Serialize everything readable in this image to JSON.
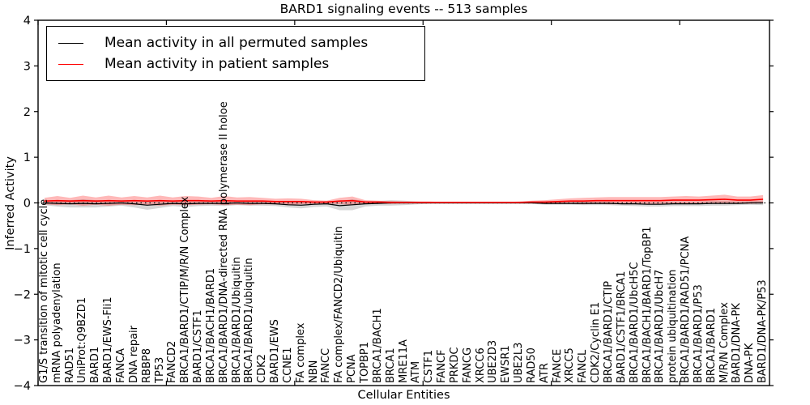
{
  "title": "BARD1 signaling events -- 513 samples",
  "axes": {
    "xlabel": "Cellular Entities",
    "ylabel": "Inferred Activity"
  },
  "legend": {
    "items": [
      {
        "label": "Mean activity in all permuted samples",
        "color": "#000000"
      },
      {
        "label": "Mean activity in patient samples",
        "color": "#ff0000"
      }
    ]
  },
  "colors": {
    "patient_line": "#ff0000",
    "patient_band": "rgba(255,0,0,0.28)",
    "permuted_line": "#000000",
    "permuted_band": "rgba(0,0,0,0.16)",
    "frame": "#000000",
    "zero_line": "#000000"
  },
  "chart_data": {
    "type": "line",
    "title": "BARD1 signaling events -- 513 samples",
    "xlabel": "Cellular Entities",
    "ylabel": "Inferred Activity",
    "ylim": [
      -4,
      4
    ],
    "yticks": [
      4,
      3,
      2,
      1,
      0,
      -1,
      -2,
      -3,
      -4
    ],
    "ytick_labels": [
      "4",
      "3",
      "2",
      "1",
      "0",
      "−1",
      "−2",
      "−3",
      "−4"
    ],
    "grid": false,
    "zero_reference_line": true,
    "legend_position": "upper left",
    "top_tick_step": 10,
    "categories": [
      "G1/S transition of mitotic cell cycle",
      "mRNA polyadenylation",
      "RAD51",
      "UniProt:Q9BZD1",
      "BARD1",
      "BARD1/EWS-Fli1",
      "FANCA",
      "DNA repair",
      "RBBP8",
      "TP53",
      "FANCD2",
      "BRCA1/BARD1/CTIP/M/R/N Complex",
      "BARD1/CSTF1",
      "BRCA1/BACH1/BARD1",
      "BRCA1/BARD1/DNA-directed RNA polymerase II holoe",
      "BRCA1/BARD1/Ubiquitin",
      "BRCA1/BARD1/ubiquitin",
      "CDK2",
      "BARD1/EWS",
      "CCNE1",
      "FA complex",
      "NBN",
      "FANCC",
      "FA complex/FANCD2/Ubiquitin",
      "PCNA",
      "TOPBP1",
      "BRCA1/BACH1",
      "BRCA1",
      "MRE11A",
      "ATM",
      "CSTF1",
      "FANCF",
      "PRKDC",
      "FANCG",
      "XRCC6",
      "UBE2D3",
      "EWSR1",
      "UBE2L3",
      "RAD50",
      "ATR",
      "FANCE",
      "XRCC5",
      "FANCL",
      "CDK2/Cyclin E1",
      "BRCA1/BARD1/CTIP",
      "BARD1/CSTF1/BRCA1",
      "BRCA1/BARD1/UbcH5C",
      "BRCA1/BACH1/BARD1/TopBP1",
      "BRCA1/BARD1/UbcH7",
      "protein ubiquitination",
      "BRCA1/BARD1/RAD51/PCNA",
      "BRCA1/BARD1/P53",
      "BRCA1/BARD1",
      "M/R/N Complex",
      "BARD1/DNA-PK",
      "DNA-PK",
      "BARD1/DNA-PK/P53"
    ],
    "series": [
      {
        "name": "Mean activity in all permuted samples",
        "color": "#000000",
        "band_color": "rgba(0,0,0,0.16)",
        "values": [
          0.0,
          -0.01,
          -0.02,
          -0.01,
          -0.02,
          -0.01,
          0.0,
          -0.02,
          -0.05,
          -0.03,
          -0.01,
          -0.02,
          -0.01,
          -0.01,
          -0.01,
          0.0,
          -0.01,
          -0.01,
          -0.02,
          -0.04,
          -0.05,
          -0.03,
          -0.02,
          -0.06,
          -0.04,
          -0.02,
          -0.01,
          0.0,
          0.0,
          0.0,
          0.0,
          0.0,
          0.0,
          0.0,
          0.0,
          0.0,
          0.0,
          0.0,
          0.0,
          -0.01,
          -0.01,
          -0.01,
          -0.01,
          -0.01,
          -0.01,
          -0.02,
          -0.02,
          -0.03,
          -0.03,
          -0.02,
          -0.02,
          -0.02,
          -0.01,
          -0.01,
          -0.01,
          0.0,
          0.0
        ],
        "std": [
          0.05,
          0.07,
          0.08,
          0.09,
          0.08,
          0.07,
          0.06,
          0.08,
          0.1,
          0.08,
          0.06,
          0.07,
          0.06,
          0.05,
          0.06,
          0.05,
          0.05,
          0.05,
          0.05,
          0.06,
          0.07,
          0.06,
          0.06,
          0.1,
          0.12,
          0.06,
          0.05,
          0.06,
          0.05,
          0.03,
          0.02,
          0.02,
          0.02,
          0.02,
          0.02,
          0.02,
          0.02,
          0.02,
          0.02,
          0.03,
          0.03,
          0.03,
          0.04,
          0.04,
          0.04,
          0.04,
          0.05,
          0.05,
          0.05,
          0.05,
          0.05,
          0.05,
          0.05,
          0.05,
          0.04,
          0.04,
          0.05
        ]
      },
      {
        "name": "Mean activity in patient samples",
        "color": "#ff0000",
        "band_color": "rgba(255,0,0,0.28)",
        "values": [
          0.04,
          0.05,
          0.04,
          0.05,
          0.04,
          0.05,
          0.04,
          0.05,
          0.04,
          0.05,
          0.04,
          0.05,
          0.05,
          0.04,
          0.05,
          0.04,
          0.04,
          0.04,
          0.03,
          0.03,
          0.03,
          0.02,
          0.02,
          0.04,
          0.05,
          0.02,
          0.02,
          0.01,
          0.01,
          0.01,
          0.01,
          0.01,
          0.01,
          0.01,
          0.01,
          0.01,
          0.01,
          0.01,
          0.02,
          0.02,
          0.03,
          0.04,
          0.04,
          0.05,
          0.05,
          0.05,
          0.05,
          0.05,
          0.05,
          0.06,
          0.06,
          0.06,
          0.07,
          0.08,
          0.06,
          0.06,
          0.08
        ],
        "std": [
          0.07,
          0.1,
          0.07,
          0.11,
          0.08,
          0.11,
          0.08,
          0.1,
          0.08,
          0.11,
          0.08,
          0.1,
          0.09,
          0.07,
          0.1,
          0.08,
          0.09,
          0.07,
          0.06,
          0.07,
          0.06,
          0.04,
          0.03,
          0.07,
          0.09,
          0.04,
          0.03,
          0.03,
          0.02,
          0.02,
          0.02,
          0.01,
          0.01,
          0.01,
          0.01,
          0.01,
          0.01,
          0.02,
          0.03,
          0.04,
          0.05,
          0.06,
          0.07,
          0.07,
          0.08,
          0.08,
          0.08,
          0.08,
          0.08,
          0.08,
          0.09,
          0.08,
          0.09,
          0.1,
          0.08,
          0.08,
          0.09
        ]
      }
    ]
  }
}
